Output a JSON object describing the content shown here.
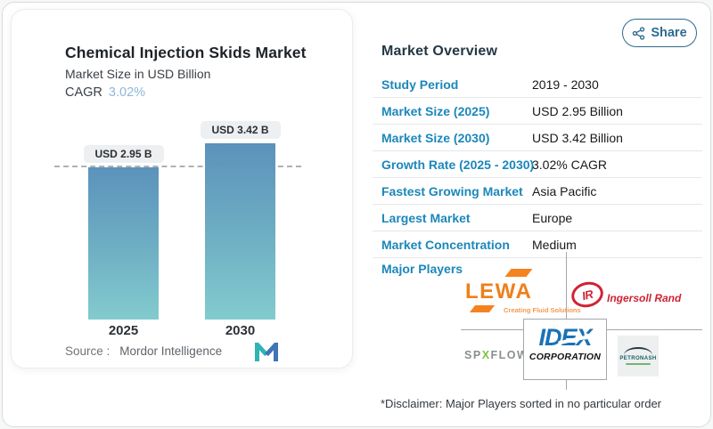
{
  "header": {
    "share_label": "Share"
  },
  "chart_card": {
    "title": "Chemical Injection Skids Market",
    "subtitle": "Market Size in USD Billion",
    "cagr_label": "CAGR",
    "cagr_value": "3.02%",
    "source_label": "Source :",
    "source_name": "Mordor Intelligence"
  },
  "chart_data": {
    "type": "bar",
    "categories": [
      "2025",
      "2030"
    ],
    "values": [
      2.95,
      3.42
    ],
    "bar_labels": [
      "USD 2.95 B",
      "USD 3.42 B"
    ],
    "unit": "USD Billion",
    "reference_line_value": 2.95,
    "ylim": [
      0,
      3.42
    ],
    "title": "Chemical Injection Skids Market",
    "subtitle": "Market Size in USD Billion",
    "cagr": "3.02%",
    "grid": false,
    "legend": "none"
  },
  "overview": {
    "heading": "Market Overview",
    "rows": [
      {
        "label": "Study Period",
        "value": "2019 - 2030"
      },
      {
        "label": "Market Size (2025)",
        "value": "USD 2.95 Billion"
      },
      {
        "label": "Market Size (2030)",
        "value": "USD 3.42 Billion"
      },
      {
        "label": "Growth Rate (2025 - 2030)",
        "value": "3.02% CAGR"
      },
      {
        "label": "Fastest Growing Market",
        "value": "Asia Pacific"
      },
      {
        "label": "Largest Market",
        "value": "Europe"
      },
      {
        "label": "Market Concentration",
        "value": "Medium"
      }
    ],
    "major_players_label": "Major Players",
    "disclaimer": "*Disclaimer: Major Players sorted in no particular order"
  },
  "players": {
    "lewa": {
      "name": "LEWA",
      "tagline": "Creating Fluid Solutions"
    },
    "ingersoll_rand": {
      "abbr": "IR",
      "name": "Ingersoll Rand"
    },
    "spxflow": {
      "part1": "SP",
      "part2": "X",
      "part3": "FLOW"
    },
    "idex": {
      "name": "IDEX",
      "sub": "CORPORATION"
    },
    "petronash": {
      "name": "PETRONASH"
    }
  },
  "colors": {
    "accent_label_blue": "#1b87ba",
    "cagr_light_blue": "#8fb6d9",
    "bar_gradient_top": "#5b92bb",
    "bar_gradient_bottom": "#82cbce",
    "share_teal": "#2e6b8f",
    "lewa_orange": "#ef7f1a",
    "ingersoll_red": "#cf2333",
    "spx_gray": "#8a8e91",
    "spx_green": "#7dc242",
    "idex_blue": "#1b72b6",
    "petronash_teal": "#155e66",
    "mi_logo_teal": "#2fb4b4",
    "mi_logo_blue": "#3f74b5"
  }
}
